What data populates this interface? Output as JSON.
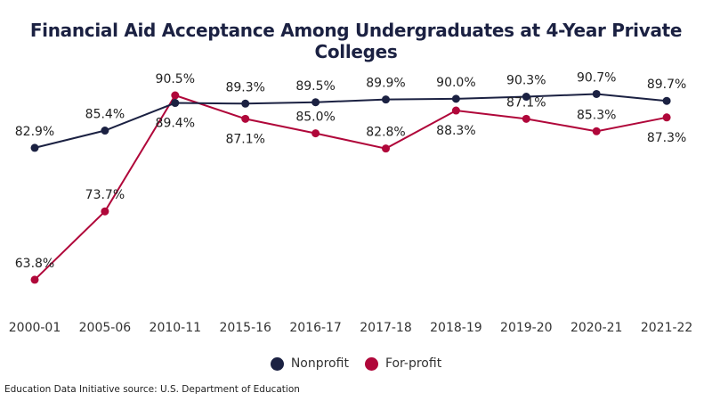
{
  "chart_data": {
    "type": "line",
    "title": "Financial Aid Acceptance Among Undergraduates at 4-Year Private Colleges",
    "categories": [
      "2000-01",
      "2005-06",
      "2010-11",
      "2015-16",
      "2016-17",
      "2017-18",
      "2018-19",
      "2019-20",
      "2020-21",
      "2021-22"
    ],
    "series": [
      {
        "name": "Nonprofit",
        "color": "#1b2142",
        "values": [
          82.9,
          85.4,
          89.4,
          89.3,
          89.5,
          89.9,
          90.0,
          90.3,
          90.7,
          89.7
        ],
        "labels": [
          "82.9%",
          "85.4%",
          "89.4%",
          "89.3%",
          "89.5%",
          "89.9%",
          "90.0%",
          "90.3%",
          "90.7%",
          "89.7%"
        ]
      },
      {
        "name": "For-profit",
        "color": "#b0073a",
        "values": [
          63.8,
          73.7,
          90.5,
          87.1,
          85.0,
          82.8,
          88.3,
          87.1,
          85.3,
          87.3
        ],
        "labels": [
          "63.8%",
          "73.7%",
          "90.5%",
          "87.1%",
          "85.0%",
          "82.8%",
          "88.3%",
          "87.1%",
          "85.3%",
          "87.3%"
        ]
      }
    ],
    "grid": false,
    "legend": "bottom",
    "xlabel": "",
    "ylabel": ""
  },
  "source": "Education Data Initiative source: U.S. Department of Education"
}
